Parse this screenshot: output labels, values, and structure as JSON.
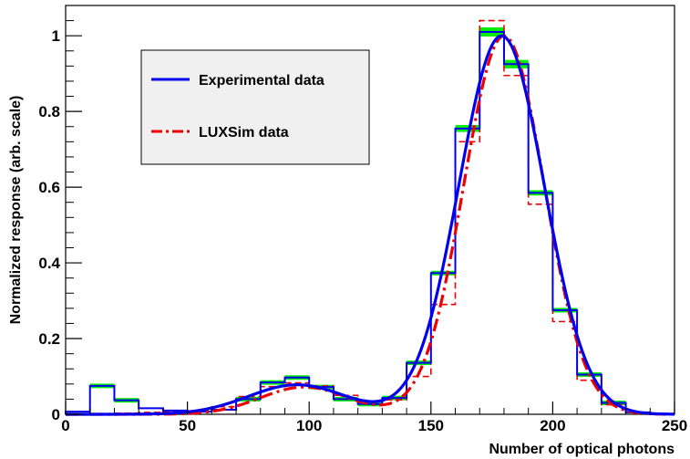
{
  "chart_data": {
    "type": "line",
    "xlabel": "Number of optical photons",
    "ylabel": "Normalized response (arb. scale)",
    "xlim": [
      0,
      250
    ],
    "ylim": [
      0,
      1.08
    ],
    "x_ticks": [
      0,
      50,
      100,
      150,
      200,
      250
    ],
    "y_ticks": [
      0,
      0.2,
      0.4,
      0.6,
      0.8,
      1
    ],
    "x_tick_labels": [
      "0",
      "50",
      "100",
      "150",
      "200",
      "250"
    ],
    "y_tick_labels": [
      "0",
      "0.2",
      "0.4",
      "0.6",
      "0.8",
      "1"
    ],
    "grid": false,
    "legend": {
      "placement": "top-left",
      "entries": [
        {
          "label": "Experimental data",
          "color": "#0000ee",
          "style": "solid"
        },
        {
          "label": "LUXSim data",
          "color": "#ee0000",
          "style": "dash-dot"
        }
      ]
    },
    "bin_edges": [
      0,
      10,
      20,
      30,
      40,
      50,
      60,
      70,
      80,
      90,
      100,
      110,
      120,
      130,
      140,
      150,
      160,
      170,
      180,
      190,
      200,
      210,
      220,
      230,
      240,
      250
    ],
    "series": [
      {
        "name": "Experimental data",
        "kind": "histogram",
        "color": "#0000ee",
        "values": [
          0.007,
          0.075,
          0.037,
          0.016,
          0.01,
          0.007,
          0.012,
          0.04,
          0.084,
          0.097,
          0.072,
          0.04,
          0.027,
          0.043,
          0.136,
          0.373,
          0.755,
          1.01,
          0.925,
          0.585,
          0.275,
          0.105,
          0.03,
          0.005,
          0.0
        ],
        "error_color": "#00ee00"
      },
      {
        "name": "LUXSim data",
        "kind": "histogram",
        "color": "#ee0000",
        "style": "dashed",
        "values": [
          0.0,
          0.0,
          0.003,
          0.005,
          0.007,
          0.01,
          0.02,
          0.047,
          0.073,
          0.083,
          0.075,
          0.05,
          0.035,
          0.038,
          0.1,
          0.29,
          0.72,
          1.04,
          0.895,
          0.555,
          0.245,
          0.09,
          0.025,
          0.005,
          0.0
        ]
      },
      {
        "name": "Experimental data",
        "kind": "fit",
        "color": "#0000ee",
        "style": "solid",
        "model": "gauss_sum",
        "components": [
          {
            "amplitude": 1.0,
            "mean": 179,
            "sigma": 17.5
          },
          {
            "amplitude": 0.078,
            "mean": 95,
            "sigma": 20
          }
        ]
      },
      {
        "name": "LUXSim data",
        "kind": "fit",
        "color": "#ee0000",
        "style": "dash-dot",
        "model": "gauss_sum",
        "components": [
          {
            "amplitude": 1.0,
            "mean": 180,
            "sigma": 16.5
          },
          {
            "amplitude": 0.072,
            "mean": 98,
            "sigma": 18
          }
        ]
      }
    ]
  }
}
